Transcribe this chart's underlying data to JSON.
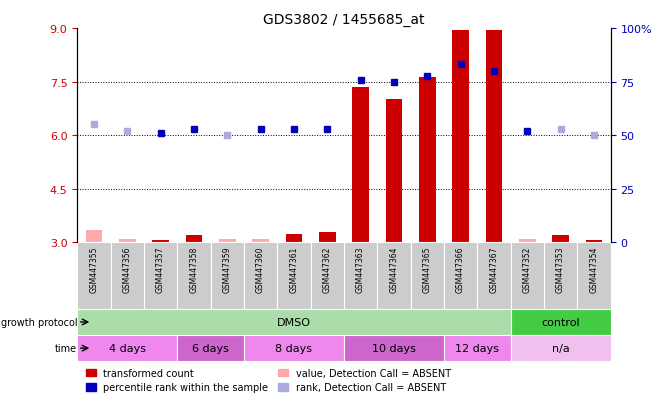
{
  "title": "GDS3802 / 1455685_at",
  "samples": [
    "GSM447355",
    "GSM447356",
    "GSM447357",
    "GSM447358",
    "GSM447359",
    "GSM447360",
    "GSM447361",
    "GSM447362",
    "GSM447363",
    "GSM447364",
    "GSM447365",
    "GSM447366",
    "GSM447367",
    "GSM447352",
    "GSM447353",
    "GSM447354"
  ],
  "bar_values": [
    3.35,
    3.1,
    3.05,
    3.2,
    3.08,
    3.1,
    3.22,
    3.28,
    7.35,
    7.0,
    7.62,
    8.95,
    8.95,
    3.08,
    3.2,
    3.05
  ],
  "bar_absent": [
    true,
    true,
    false,
    false,
    true,
    true,
    false,
    false,
    false,
    false,
    false,
    false,
    false,
    true,
    false,
    false
  ],
  "rank_values": [
    6.3,
    6.12,
    6.06,
    6.18,
    6.0,
    6.18,
    6.18,
    6.18,
    7.55,
    7.5,
    7.65,
    8.0,
    7.8,
    6.12,
    6.18,
    6.0
  ],
  "rank_absent": [
    true,
    true,
    false,
    false,
    true,
    false,
    false,
    false,
    false,
    false,
    false,
    false,
    false,
    false,
    true,
    true
  ],
  "ylim_left": [
    3.0,
    9.0
  ],
  "ylim_right": [
    0,
    100
  ],
  "yticks_left": [
    3.0,
    4.5,
    6.0,
    7.5,
    9.0
  ],
  "yticks_right": [
    0,
    25,
    50,
    75,
    100
  ],
  "hlines": [
    4.5,
    6.0,
    7.5
  ],
  "growth_protocol_groups": [
    {
      "label": "DMSO",
      "start": 0,
      "end": 13,
      "color": "#aaddaa"
    },
    {
      "label": "control",
      "start": 13,
      "end": 16,
      "color": "#44cc44"
    }
  ],
  "time_groups": [
    {
      "label": "4 days",
      "start": 0,
      "end": 3,
      "color": "#ee88ee"
    },
    {
      "label": "6 days",
      "start": 3,
      "end": 5,
      "color": "#cc66cc"
    },
    {
      "label": "8 days",
      "start": 5,
      "end": 8,
      "color": "#ee88ee"
    },
    {
      "label": "10 days",
      "start": 8,
      "end": 11,
      "color": "#cc66cc"
    },
    {
      "label": "12 days",
      "start": 11,
      "end": 13,
      "color": "#ee88ee"
    },
    {
      "label": "n/a",
      "start": 13,
      "end": 16,
      "color": "#f0c0f0"
    }
  ],
  "bar_color_present": "#cc0000",
  "bar_color_absent": "#ffaaaa",
  "rank_color_present": "#0000bb",
  "rank_color_absent": "#aaaadd",
  "bar_width": 0.5,
  "rank_marker": "s",
  "rank_markersize": 5,
  "legend_items": [
    {
      "label": "transformed count",
      "color": "#cc0000"
    },
    {
      "label": "percentile rank within the sample",
      "color": "#0000bb"
    },
    {
      "label": "value, Detection Call = ABSENT",
      "color": "#ffaaaa"
    },
    {
      "label": "rank, Detection Call = ABSENT",
      "color": "#aaaadd"
    }
  ],
  "left_label_color": "#cc0000",
  "right_label_color": "#0000bb",
  "row_label_growth": "growth protocol",
  "row_label_time": "time",
  "sample_col_color": "#cccccc",
  "figwidth": 6.71,
  "figheight": 4.14,
  "dpi": 100
}
